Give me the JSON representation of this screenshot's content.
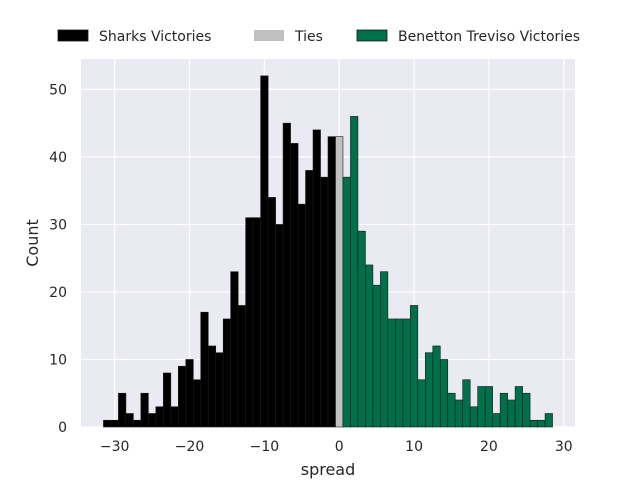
{
  "chart_data": {
    "type": "bar",
    "subtype": "histogram",
    "title": "",
    "xlabel": "spread",
    "ylabel": "Count",
    "xlim": [
      -34.5,
      31.5
    ],
    "ylim": [
      0,
      54.5
    ],
    "xticks": [
      -30,
      -20,
      -10,
      0,
      10,
      20,
      30
    ],
    "yticks": [
      0,
      10,
      20,
      30,
      40,
      50
    ],
    "grid": true,
    "legend_position": "top",
    "colors": {
      "background": "#eaeaf2",
      "grid": "#ffffff",
      "sharks": "#000000",
      "ties": "#c0c0c0",
      "benetton": "#00704a",
      "edge": "#1a1a1a"
    },
    "bin_width": 1,
    "series": [
      {
        "name": "Sharks Victories",
        "x": [
          -31,
          -30,
          -29,
          -28,
          -27,
          -26,
          -25,
          -24,
          -23,
          -22,
          -21,
          -20,
          -19,
          -18,
          -17,
          -16,
          -15,
          -14,
          -13,
          -12,
          -11,
          -10,
          -9,
          -8,
          -7,
          -6,
          -5,
          -4,
          -3,
          -2,
          -1
        ],
        "values": [
          1,
          1,
          5,
          2,
          1,
          5,
          2,
          3,
          8,
          3,
          9,
          10,
          7,
          17,
          12,
          11,
          16,
          23,
          18,
          31,
          31,
          52,
          34,
          30,
          45,
          42,
          33,
          38,
          44,
          37,
          43
        ]
      },
      {
        "name": "Ties",
        "x": [
          0
        ],
        "values": [
          43
        ]
      },
      {
        "name": "Benetton Treviso Victories",
        "x": [
          1,
          2,
          3,
          4,
          5,
          6,
          7,
          8,
          9,
          10,
          11,
          12,
          13,
          14,
          15,
          16,
          17,
          18,
          19,
          20,
          21,
          22,
          23,
          24,
          25,
          26,
          27,
          28
        ],
        "values": [
          37,
          46,
          29,
          24,
          21,
          23,
          16,
          16,
          16,
          18,
          7,
          11,
          12,
          10,
          5,
          4,
          7,
          3,
          6,
          6,
          2,
          5,
          4,
          6,
          5,
          1,
          1,
          2
        ]
      }
    ]
  }
}
